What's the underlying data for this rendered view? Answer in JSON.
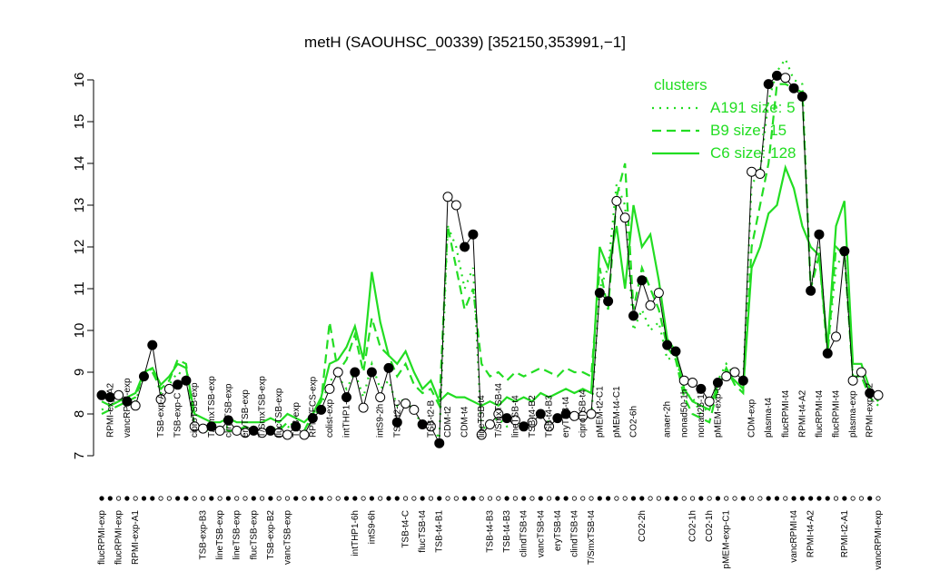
{
  "chart_data": {
    "type": "line",
    "title": "metH (SAOUHSC_00339) [352150,353991,−1]",
    "categories": [
      "flucRPMI-exp",
      "RPMI-exp-A2",
      "flucRPMI-exp",
      "vancRPMI-exp",
      "RPMI-exp-A1",
      null,
      null,
      "TSB-exp-A",
      null,
      "TSB-exp-C",
      null,
      "ciproTSB-exp",
      "TSB-exp-B3",
      "T/SmxTSB-exp",
      "lineTSB-exp",
      "clindTSB-exp",
      "lineTSB-exp",
      "eryTSB-exp",
      "flucTSB-exp",
      "T/SmxTSB-exp",
      "TSB-exp-B2",
      "flucTSB-exp",
      "vancTSB-exp",
      "TSB-exp",
      null,
      "RPMI/FCS-exp",
      null,
      "colist-exp",
      null,
      "intTHP1-2h",
      "intTHP1-6h",
      null,
      "intS9-6h",
      "intS9-2h",
      null,
      "TSB-t2-C",
      "TSB-t4-C",
      null,
      "flucTSB-t4",
      "TSB-t2-B",
      "TSB-t4-B1",
      "CDM-t2",
      null,
      "CDM-t4",
      null,
      "lineTSB-t4",
      "TSB-t4-B3",
      "T/SmxTSB-t4",
      "TSB-t4-B3",
      "lineTSB-t4",
      "clindTSB-t4",
      "TSB-t4-B2",
      "vancTSB-t4",
      "TSB-t4-B3",
      "eryTSB-t4",
      "eryTSB-t4",
      "clindTSB-t4",
      "ciproTSB-t4",
      "T/SmxTSB-t4",
      "pMEM-t2-C1",
      null,
      "pMEM-t4-C1",
      null,
      "CO2-6h",
      "CO2-2h",
      null,
      null,
      "anaer-2h",
      null,
      "nonad50-1h",
      "CO2-1h",
      "nonad25-1h",
      "CO2-1h",
      "pMEM-exp-C2",
      "pMEM-exp-C1",
      null,
      null,
      "CDM-exp",
      null,
      "plasma-t4",
      null,
      "flucRPMI-t4",
      "vancRPMI-t4",
      "RPMI-t4-A2",
      "RPMI-t4-A2",
      "flucRPMI-t4",
      null,
      "flucRPMI-t4",
      "RPMI-t2-A1",
      "plasma-exp",
      null,
      "RPMI-exp-A2",
      "vancRPMI-exp"
    ],
    "values": [
      8.45,
      8.4,
      8.45,
      8.3,
      8.2,
      8.9,
      9.65,
      8.35,
      8.6,
      8.7,
      8.8,
      7.7,
      7.65,
      7.7,
      7.6,
      7.85,
      7.6,
      7.55,
      7.6,
      7.55,
      7.6,
      7.55,
      7.5,
      7.7,
      7.5,
      7.9,
      8.1,
      8.6,
      9.0,
      8.4,
      9.0,
      8.15,
      9.0,
      8.4,
      9.1,
      7.8,
      8.25,
      8.1,
      7.75,
      7.7,
      7.3,
      13.2,
      13.0,
      12.0,
      12.3,
      7.5,
      7.75,
      8.0,
      7.9,
      7.85,
      7.7,
      7.8,
      8.0,
      7.7,
      7.9,
      8.0,
      7.95,
      7.95,
      8.0,
      10.9,
      10.7,
      13.1,
      12.7,
      10.35,
      11.2,
      10.6,
      10.9,
      9.65,
      9.5,
      8.8,
      8.75,
      8.6,
      8.3,
      8.75,
      8.9,
      9.0,
      8.8,
      13.8,
      13.75,
      15.9,
      16.1,
      16.05,
      15.8,
      15.6,
      10.95,
      12.3,
      9.45,
      9.85,
      11.9,
      8.8,
      9.0,
      8.5,
      8.45
    ],
    "point_colors": [
      "#000",
      "#000",
      "#fff",
      "#000",
      "#fff",
      "#000",
      "#000",
      "#fff",
      "#fff",
      "#000",
      "#000",
      "#fff",
      "#fff",
      "#000",
      "#fff",
      "#000",
      "#fff",
      "#fff",
      "#000",
      "#fff",
      "#000",
      "#fff",
      "#fff",
      "#000",
      "#fff",
      "#000",
      "#000",
      "#fff",
      "#fff",
      "#000",
      "#000",
      "#fff",
      "#000",
      "#fff",
      "#000",
      "#000",
      "#fff",
      "#fff",
      "#000",
      "#fff",
      "#000",
      "#fff",
      "#fff",
      "#000",
      "#000",
      "#fff",
      "#fff",
      "#fff",
      "#000",
      "#fff",
      "#000",
      "#fff",
      "#000",
      "#fff",
      "#000",
      "#000",
      "#fff",
      "#fff",
      "#fff",
      "#000",
      "#000",
      "#fff",
      "#fff",
      "#000",
      "#000",
      "#fff",
      "#fff",
      "#000",
      "#000",
      "#fff",
      "#fff",
      "#000",
      "#fff",
      "#000",
      "#fff",
      "#fff",
      "#000",
      "#fff",
      "#fff",
      "#000",
      "#000",
      "#fff",
      "#000",
      "#000",
      "#000",
      "#000",
      "#000",
      "#fff",
      "#000",
      "#fff",
      "#fff",
      "#000",
      "#fff"
    ],
    "line_color": "#000",
    "ylim": [
      7,
      16
    ],
    "yticks": [
      7,
      8,
      9,
      10,
      11,
      12,
      13,
      14,
      15,
      16
    ],
    "legend": {
      "title": "clusters",
      "position": "top-right"
    },
    "series": [
      {
        "name": "A191 size: 5",
        "style": "dotted",
        "color": "#22dd22",
        "values": [
          8.1,
          8.2,
          8.3,
          8.4,
          8.3,
          8.9,
          9.1,
          8.5,
          8.7,
          9.0,
          8.9,
          7.7,
          7.6,
          7.7,
          7.6,
          7.7,
          7.6,
          7.6,
          7.7,
          7.6,
          7.6,
          7.7,
          7.7,
          7.6,
          7.5,
          7.9,
          8.2,
          8.8,
          8.9,
          8.6,
          9.0,
          8.4,
          9.2,
          8.6,
          8.8,
          8.2,
          8.4,
          8.0,
          7.8,
          7.8,
          7.4,
          12.5,
          12.0,
          11.0,
          11.5,
          7.6,
          7.8,
          7.9,
          7.7,
          7.8,
          7.7,
          7.8,
          8.0,
          7.8,
          7.9,
          8.0,
          7.9,
          8.0,
          7.9,
          11.0,
          11.5,
          13.5,
          13.0,
          10.0,
          10.5,
          10.0,
          10.2,
          9.3,
          9.4,
          8.5,
          8.4,
          8.0,
          8.2,
          8.8,
          9.2,
          8.9,
          8.8,
          13.5,
          13.8,
          15.5,
          16.2,
          16.5,
          16.0,
          15.9,
          11.0,
          12.0,
          9.5,
          11.5,
          11.9,
          8.9,
          9.0,
          8.5,
          8.4
        ]
      },
      {
        "name": "B9 size: 15",
        "style": "dashed",
        "color": "#22dd22",
        "values": [
          8.0,
          8.1,
          8.2,
          8.3,
          8.4,
          9.0,
          9.0,
          8.6,
          8.8,
          9.3,
          9.2,
          7.7,
          7.6,
          7.6,
          7.7,
          7.6,
          7.6,
          7.7,
          7.6,
          7.6,
          7.7,
          7.6,
          7.8,
          7.7,
          7.6,
          8.0,
          8.3,
          10.2,
          9.0,
          9.3,
          9.9,
          9.0,
          10.3,
          9.6,
          9.4,
          8.9,
          9.2,
          8.7,
          8.5,
          8.6,
          8.2,
          12.5,
          11.5,
          10.5,
          11.0,
          9.2,
          8.9,
          9.0,
          8.8,
          9.0,
          8.9,
          9.0,
          9.1,
          9.0,
          8.9,
          9.1,
          9.0,
          9.0,
          8.9,
          11.5,
          10.5,
          13.2,
          14.0,
          10.5,
          11.5,
          11.0,
          10.5,
          9.6,
          9.3,
          8.4,
          8.0,
          7.9,
          7.8,
          8.6,
          9.1,
          8.7,
          8.5,
          12.0,
          13.0,
          14.0,
          15.9,
          15.9,
          15.8,
          15.7,
          11.0,
          11.8,
          9.4,
          12.0,
          11.8,
          8.9,
          8.9,
          8.4,
          8.2
        ]
      },
      {
        "name": "C6 size: 128",
        "style": "solid",
        "color": "#22dd22",
        "values": [
          8.3,
          8.2,
          8.3,
          8.4,
          8.5,
          9.0,
          9.1,
          8.7,
          8.9,
          9.2,
          9.1,
          8.0,
          7.9,
          7.8,
          7.8,
          7.9,
          7.8,
          7.8,
          7.8,
          7.8,
          7.9,
          7.8,
          8.0,
          7.9,
          7.8,
          8.0,
          8.4,
          9.2,
          9.3,
          9.6,
          10.1,
          9.3,
          11.4,
          10.2,
          9.4,
          9.2,
          9.5,
          9.0,
          8.6,
          8.8,
          8.3,
          8.5,
          8.4,
          8.4,
          8.3,
          8.2,
          8.3,
          8.2,
          8.4,
          8.3,
          8.4,
          8.3,
          8.5,
          8.4,
          8.5,
          8.6,
          8.5,
          8.6,
          8.5,
          12.0,
          11.5,
          12.5,
          11.0,
          13.0,
          12.0,
          12.3,
          11.2,
          9.8,
          9.5,
          8.6,
          8.3,
          8.2,
          8.1,
          8.7,
          9.0,
          8.8,
          8.6,
          11.5,
          12.0,
          12.8,
          13.0,
          13.9,
          13.4,
          12.5,
          12.0,
          11.8,
          9.6,
          12.5,
          13.1,
          9.2,
          9.2,
          8.6,
          8.3
        ]
      }
    ]
  }
}
